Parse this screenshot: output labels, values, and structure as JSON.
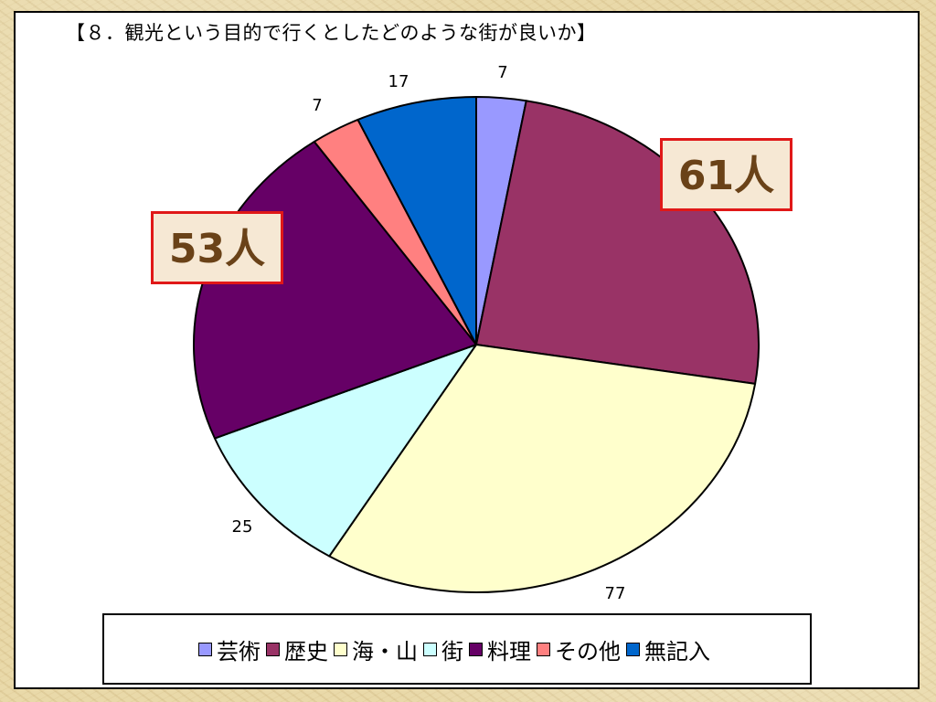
{
  "chart_data": {
    "type": "pie",
    "title": "【８．観光という目的で行くとしたどのような街が良いか】",
    "categories": [
      "芸術",
      "歴史",
      "海・山",
      "街",
      "料理",
      "その他",
      "無記入"
    ],
    "values": [
      7,
      61,
      77,
      25,
      53,
      7,
      17
    ],
    "colors": [
      "#9999ff",
      "#993366",
      "#ffffcc",
      "#ccffff",
      "#660066",
      "#ff8080",
      "#0066cc"
    ],
    "legend_position": "bottom",
    "callouts": [
      "61人",
      "53人"
    ]
  }
}
